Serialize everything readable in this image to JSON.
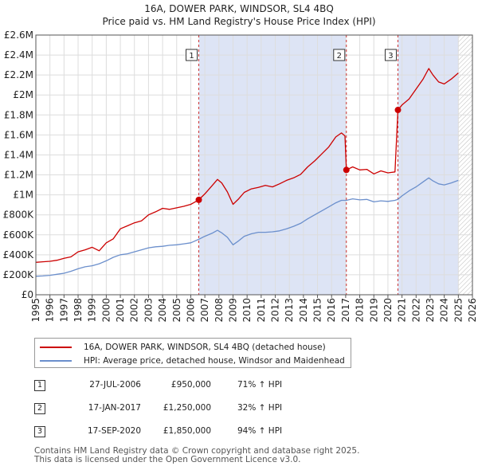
{
  "colors": {
    "price_line": "#cc0000",
    "hpi_line": "#6b8fcc",
    "shade": "#dde4f5",
    "grid": "#dddddd",
    "marker_line": "#cc3333"
  },
  "chart_data": {
    "type": "line",
    "title": "16A, DOWER PARK, WINDSOR, SL4 4BQ",
    "subtitle": "Price paid vs. HM Land Registry's House Price Index (HPI)",
    "xlim": [
      1995,
      2026
    ],
    "ylim": [
      0,
      2600000
    ],
    "x_ticks": [
      1995,
      1996,
      1997,
      1998,
      1999,
      2000,
      2001,
      2002,
      2003,
      2004,
      2005,
      2006,
      2007,
      2008,
      2009,
      2010,
      2011,
      2012,
      2013,
      2014,
      2015,
      2016,
      2017,
      2018,
      2019,
      2020,
      2021,
      2022,
      2023,
      2024,
      2025,
      2026
    ],
    "y_ticks": [
      {
        "value": 0,
        "label": "£0"
      },
      {
        "value": 200000,
        "label": "£200K"
      },
      {
        "value": 400000,
        "label": "£400K"
      },
      {
        "value": 600000,
        "label": "£600K"
      },
      {
        "value": 800000,
        "label": "£800K"
      },
      {
        "value": 1000000,
        "label": "£1M"
      },
      {
        "value": 1200000,
        "label": "£1.2M"
      },
      {
        "value": 1400000,
        "label": "£1.4M"
      },
      {
        "value": 1600000,
        "label": "£1.6M"
      },
      {
        "value": 1800000,
        "label": "£1.8M"
      },
      {
        "value": 2000000,
        "label": "£2M"
      },
      {
        "value": 2200000,
        "label": "£2.2M"
      },
      {
        "value": 2400000,
        "label": "£2.4M"
      },
      {
        "value": 2600000,
        "label": "£2.6M"
      }
    ],
    "shaded_ranges": [
      [
        2006.57,
        2017.05
      ],
      [
        2020.71,
        2025.0
      ]
    ],
    "future_hatch_from": 2025.0,
    "series": [
      {
        "name": "16A, DOWER PARK, WINDSOR, SL4 4BQ (detached house)",
        "color": "#cc0000",
        "points": [
          [
            1995.0,
            325000
          ],
          [
            1995.5,
            330000
          ],
          [
            1996.0,
            335000
          ],
          [
            1996.5,
            345000
          ],
          [
            1997.0,
            365000
          ],
          [
            1997.5,
            380000
          ],
          [
            1998.0,
            430000
          ],
          [
            1998.5,
            450000
          ],
          [
            1999.0,
            475000
          ],
          [
            1999.5,
            440000
          ],
          [
            2000.0,
            520000
          ],
          [
            2000.5,
            560000
          ],
          [
            2001.0,
            660000
          ],
          [
            2001.5,
            690000
          ],
          [
            2002.0,
            720000
          ],
          [
            2002.5,
            740000
          ],
          [
            2003.0,
            800000
          ],
          [
            2003.5,
            830000
          ],
          [
            2004.0,
            865000
          ],
          [
            2004.5,
            855000
          ],
          [
            2005.0,
            870000
          ],
          [
            2005.5,
            885000
          ],
          [
            2006.0,
            905000
          ],
          [
            2006.57,
            950000
          ],
          [
            2007.0,
            1010000
          ],
          [
            2007.5,
            1090000
          ],
          [
            2007.9,
            1155000
          ],
          [
            2008.2,
            1120000
          ],
          [
            2008.6,
            1030000
          ],
          [
            2009.0,
            905000
          ],
          [
            2009.4,
            960000
          ],
          [
            2009.8,
            1025000
          ],
          [
            2010.3,
            1060000
          ],
          [
            2010.8,
            1075000
          ],
          [
            2011.3,
            1095000
          ],
          [
            2011.8,
            1080000
          ],
          [
            2012.3,
            1110000
          ],
          [
            2012.8,
            1145000
          ],
          [
            2013.3,
            1170000
          ],
          [
            2013.8,
            1205000
          ],
          [
            2014.3,
            1280000
          ],
          [
            2014.8,
            1340000
          ],
          [
            2015.3,
            1410000
          ],
          [
            2015.8,
            1480000
          ],
          [
            2016.3,
            1580000
          ],
          [
            2016.7,
            1620000
          ],
          [
            2016.95,
            1590000
          ],
          [
            2017.05,
            1250000
          ],
          [
            2017.5,
            1280000
          ],
          [
            2018.0,
            1250000
          ],
          [
            2018.5,
            1255000
          ],
          [
            2019.0,
            1210000
          ],
          [
            2019.5,
            1240000
          ],
          [
            2020.0,
            1220000
          ],
          [
            2020.5,
            1230000
          ],
          [
            2020.71,
            1850000
          ],
          [
            2021.0,
            1900000
          ],
          [
            2021.5,
            1960000
          ],
          [
            2022.0,
            2060000
          ],
          [
            2022.5,
            2160000
          ],
          [
            2022.9,
            2265000
          ],
          [
            2023.2,
            2200000
          ],
          [
            2023.6,
            2130000
          ],
          [
            2024.0,
            2110000
          ],
          [
            2024.5,
            2160000
          ],
          [
            2025.0,
            2220000
          ]
        ]
      },
      {
        "name": "HPI: Average price, detached house, Windsor and Maidenhead",
        "color": "#6b8fcc",
        "points": [
          [
            1995.0,
            185000
          ],
          [
            1995.5,
            188000
          ],
          [
            1996.0,
            195000
          ],
          [
            1996.5,
            205000
          ],
          [
            1997.0,
            215000
          ],
          [
            1997.5,
            235000
          ],
          [
            1998.0,
            260000
          ],
          [
            1998.5,
            280000
          ],
          [
            1999.0,
            290000
          ],
          [
            1999.5,
            310000
          ],
          [
            2000.0,
            340000
          ],
          [
            2000.5,
            375000
          ],
          [
            2001.0,
            400000
          ],
          [
            2001.5,
            410000
          ],
          [
            2002.0,
            430000
          ],
          [
            2002.5,
            450000
          ],
          [
            2003.0,
            470000
          ],
          [
            2003.5,
            480000
          ],
          [
            2004.0,
            485000
          ],
          [
            2004.5,
            495000
          ],
          [
            2005.0,
            500000
          ],
          [
            2005.5,
            510000
          ],
          [
            2006.0,
            520000
          ],
          [
            2006.57,
            555000
          ],
          [
            2007.0,
            585000
          ],
          [
            2007.5,
            615000
          ],
          [
            2007.9,
            645000
          ],
          [
            2008.2,
            620000
          ],
          [
            2008.6,
            575000
          ],
          [
            2009.0,
            500000
          ],
          [
            2009.4,
            540000
          ],
          [
            2009.8,
            585000
          ],
          [
            2010.3,
            610000
          ],
          [
            2010.8,
            625000
          ],
          [
            2011.3,
            625000
          ],
          [
            2011.8,
            630000
          ],
          [
            2012.3,
            640000
          ],
          [
            2012.8,
            660000
          ],
          [
            2013.3,
            685000
          ],
          [
            2013.8,
            715000
          ],
          [
            2014.3,
            760000
          ],
          [
            2014.8,
            800000
          ],
          [
            2015.3,
            840000
          ],
          [
            2015.8,
            880000
          ],
          [
            2016.3,
            920000
          ],
          [
            2016.7,
            945000
          ],
          [
            2017.05,
            945000
          ],
          [
            2017.5,
            960000
          ],
          [
            2018.0,
            950000
          ],
          [
            2018.5,
            955000
          ],
          [
            2019.0,
            930000
          ],
          [
            2019.5,
            940000
          ],
          [
            2020.0,
            935000
          ],
          [
            2020.5,
            945000
          ],
          [
            2020.71,
            955000
          ],
          [
            2021.0,
            990000
          ],
          [
            2021.5,
            1040000
          ],
          [
            2022.0,
            1080000
          ],
          [
            2022.5,
            1130000
          ],
          [
            2022.9,
            1170000
          ],
          [
            2023.2,
            1140000
          ],
          [
            2023.6,
            1110000
          ],
          [
            2024.0,
            1100000
          ],
          [
            2024.5,
            1120000
          ],
          [
            2025.0,
            1145000
          ]
        ]
      }
    ],
    "sales": [
      {
        "id": "1",
        "x": 2006.57,
        "value": 950000
      },
      {
        "id": "2",
        "x": 2017.05,
        "value": 1250000
      },
      {
        "id": "3",
        "x": 2020.71,
        "value": 1850000
      }
    ]
  },
  "legend": {
    "price_label": "16A, DOWER PARK, WINDSOR, SL4 4BQ (detached house)",
    "hpi_label": "HPI: Average price, detached house, Windsor and Maidenhead"
  },
  "sales_table": [
    {
      "num": "1",
      "date": "27-JUL-2006",
      "price": "£950,000",
      "hpi": "71% ↑ HPI"
    },
    {
      "num": "2",
      "date": "17-JAN-2017",
      "price": "£1,250,000",
      "hpi": "32% ↑ HPI"
    },
    {
      "num": "3",
      "date": "17-SEP-2020",
      "price": "£1,850,000",
      "hpi": "94% ↑ HPI"
    }
  ],
  "footer": {
    "line1": "Contains HM Land Registry data © Crown copyright and database right 2025.",
    "line2": "This data is licensed under the Open Government Licence v3.0."
  }
}
